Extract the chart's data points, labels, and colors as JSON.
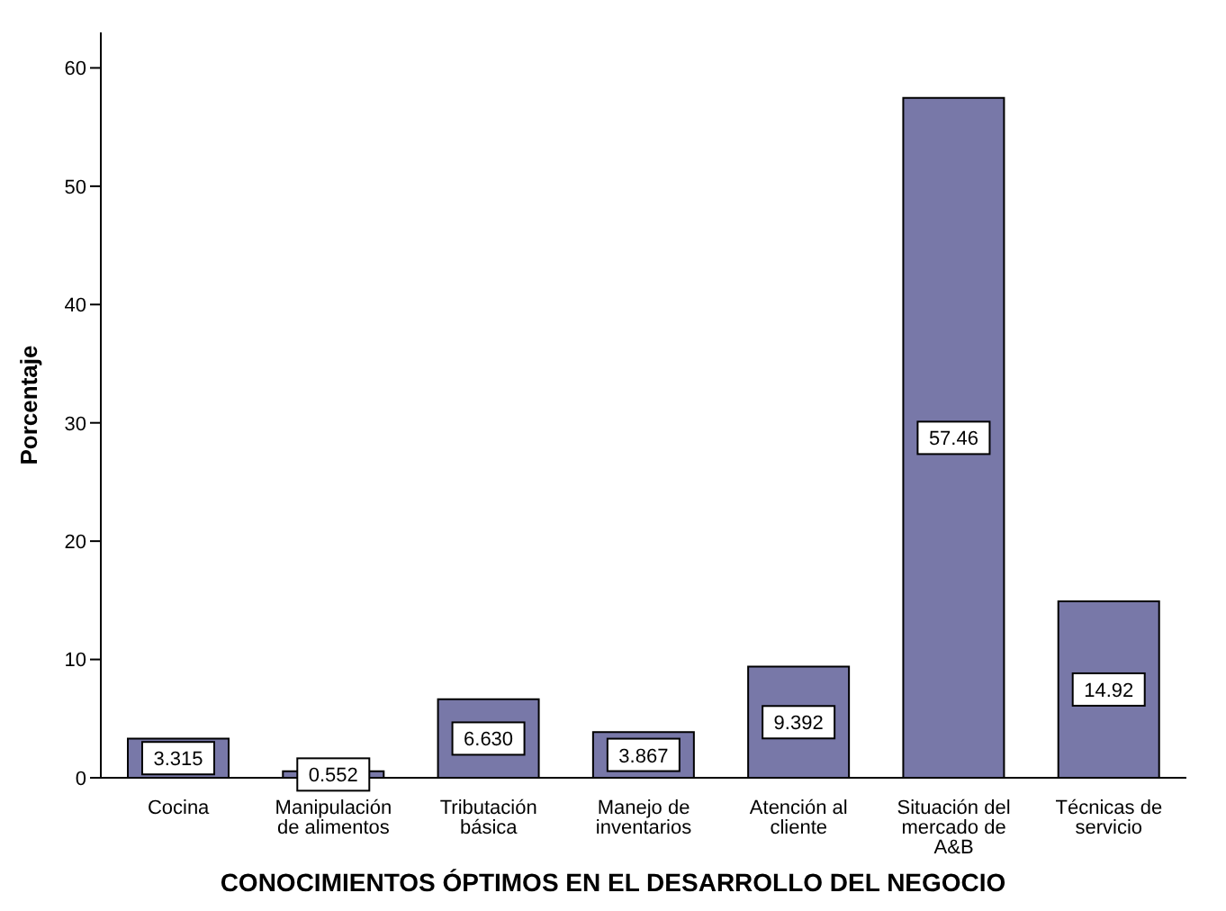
{
  "chart_data": {
    "type": "bar",
    "xlabel": "CONOCIMIENTOS ÓPTIMOS EN EL DESARROLLO DEL NEGOCIO",
    "ylabel": "Porcentaje",
    "categories": [
      "Cocina",
      "Manipulación de alimentos",
      "Tributación básica",
      "Manejo de inventarios",
      "Atención al cliente",
      "Situación del mercado de A&B",
      "Técnicas de servicio"
    ],
    "values": [
      3.315,
      0.552,
      6.63,
      3.867,
      9.392,
      57.46,
      14.92
    ],
    "value_labels": [
      "3.315",
      "0.552",
      "6.630",
      "3.867",
      "9.392",
      "57.46",
      "14.92"
    ],
    "color": "#7878a8",
    "ylim": [
      0,
      63
    ],
    "yticks": [
      0,
      10,
      20,
      30,
      40,
      50,
      60
    ],
    "grid": false
  }
}
